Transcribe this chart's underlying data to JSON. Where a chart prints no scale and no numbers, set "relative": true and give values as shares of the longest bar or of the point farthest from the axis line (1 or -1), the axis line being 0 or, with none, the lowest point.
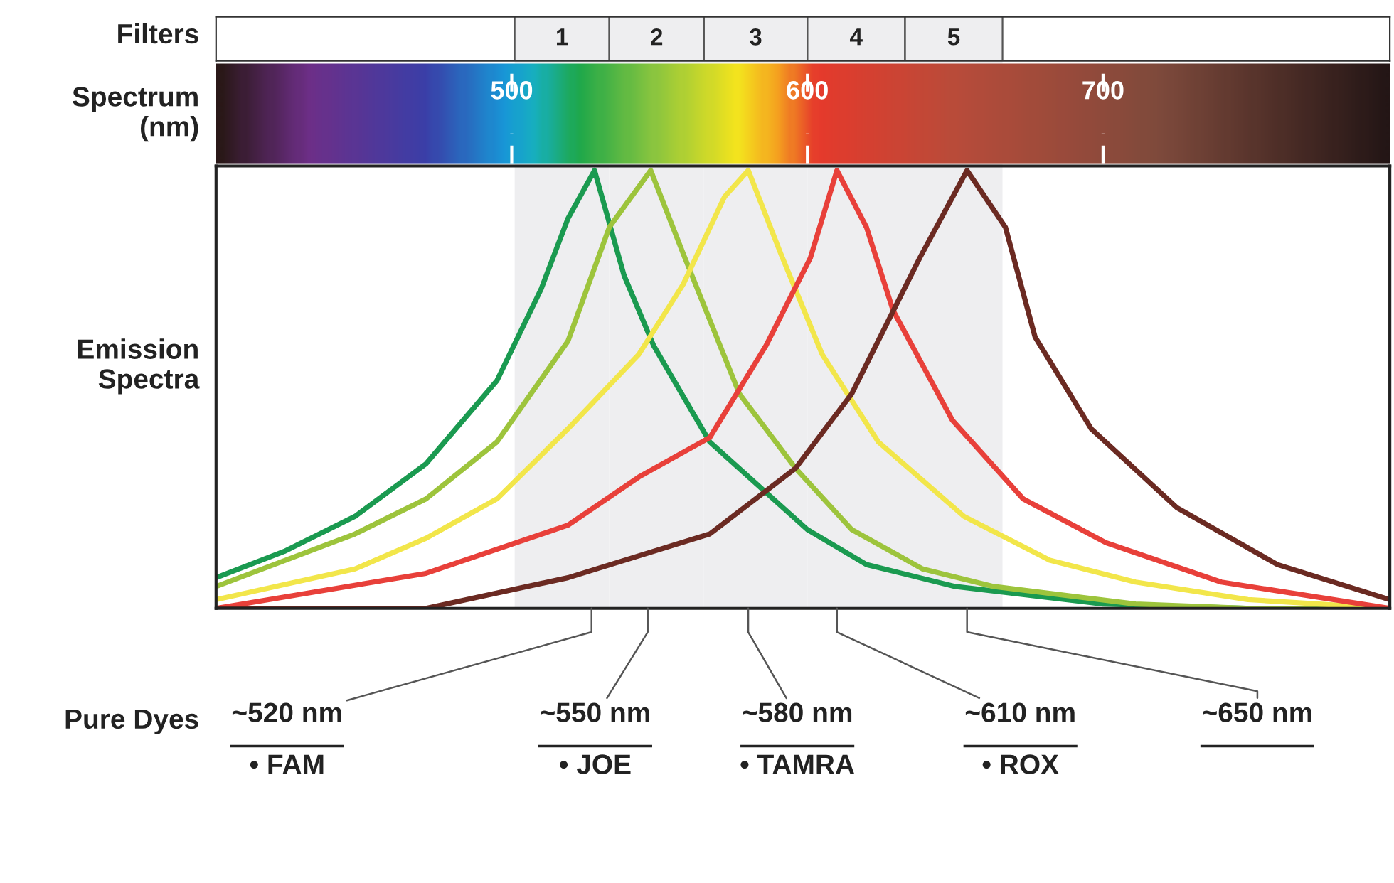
{
  "chart_data": {
    "type": "line",
    "relative": true,
    "xlabel": "Spectrum\n(nm)",
    "ylabel": "Emission\nSpectra",
    "xlim": [
      400,
      797
    ],
    "xticks": [
      500,
      600,
      700
    ],
    "marker": "none",
    "line_style": "solid",
    "bands": [
      {
        "axis": "x",
        "from": 501,
        "to": 533,
        "label": "1",
        "color": "#eeeef0"
      },
      {
        "axis": "x",
        "from": 533,
        "to": 565,
        "label": "2",
        "color": "#eeeef0"
      },
      {
        "axis": "x",
        "from": 565,
        "to": 600,
        "label": "3",
        "color": "#eeeef0"
      },
      {
        "axis": "x",
        "from": 600,
        "to": 633,
        "label": "4",
        "color": "#eeeef0"
      },
      {
        "axis": "x",
        "from": 633,
        "to": 666,
        "label": "5",
        "color": "#eeeef0"
      }
    ],
    "series": [
      {
        "color": "#1a9a50",
        "x": [
          400,
          423,
          447,
          471,
          495,
          510,
          519,
          528,
          538,
          548,
          567,
          600,
          620,
          650,
          700,
          750,
          797
        ],
        "values": [
          0.07,
          0.13,
          0.21,
          0.33,
          0.52,
          0.73,
          0.89,
          1.0,
          0.76,
          0.6,
          0.38,
          0.18,
          0.1,
          0.05,
          0.01,
          0.0,
          0.0
        ]
      },
      {
        "color": "#9dc43c",
        "x": [
          400,
          447,
          471,
          495,
          519,
          533,
          547,
          558,
          577,
          596,
          615,
          639,
          663,
          711,
          750,
          797
        ],
        "values": [
          0.05,
          0.17,
          0.25,
          0.38,
          0.61,
          0.87,
          1.0,
          0.81,
          0.49,
          0.32,
          0.18,
          0.09,
          0.05,
          0.01,
          0.0,
          0.0
        ]
      },
      {
        "color": "#f2e64a",
        "x": [
          400,
          447,
          471,
          495,
          519,
          543,
          558,
          572,
          580,
          591,
          605,
          624,
          653,
          682,
          711,
          749,
          797
        ],
        "values": [
          0.02,
          0.09,
          0.16,
          0.25,
          0.41,
          0.58,
          0.74,
          0.94,
          1.0,
          0.81,
          0.58,
          0.38,
          0.21,
          0.11,
          0.06,
          0.02,
          0.0
        ]
      },
      {
        "color": "#e8403a",
        "x": [
          400,
          471,
          519,
          543,
          567,
          586,
          601,
          610,
          620,
          629,
          649,
          673,
          701,
          740,
          797
        ],
        "values": [
          0.0,
          0.08,
          0.19,
          0.3,
          0.39,
          0.6,
          0.8,
          1.0,
          0.87,
          0.68,
          0.43,
          0.25,
          0.15,
          0.06,
          0.0
        ]
      },
      {
        "color": "#6b2a22",
        "x": [
          400,
          471,
          519,
          567,
          596,
          615,
          638,
          654,
          667,
          677,
          696,
          725,
          759,
          797
        ],
        "values": [
          0.0,
          0.0,
          0.07,
          0.17,
          0.32,
          0.49,
          0.8,
          1.0,
          0.87,
          0.62,
          0.41,
          0.23,
          0.1,
          0.02
        ]
      }
    ],
    "annotations": [
      "Filters",
      "Pure Dyes",
      {
        "text": "~520 nm\n• FAM",
        "x": 527,
        "y": 0
      },
      {
        "text": "~550 nm\n• JOE",
        "x": 546,
        "y": 0
      },
      {
        "text": "~580 nm\n• TAMRA",
        "x": 580,
        "y": 0
      },
      {
        "text": "~610 nm\n• ROX",
        "x": 610,
        "y": 0
      },
      {
        "text": "~650 nm",
        "x": 654,
        "y": 0
      }
    ]
  }
}
